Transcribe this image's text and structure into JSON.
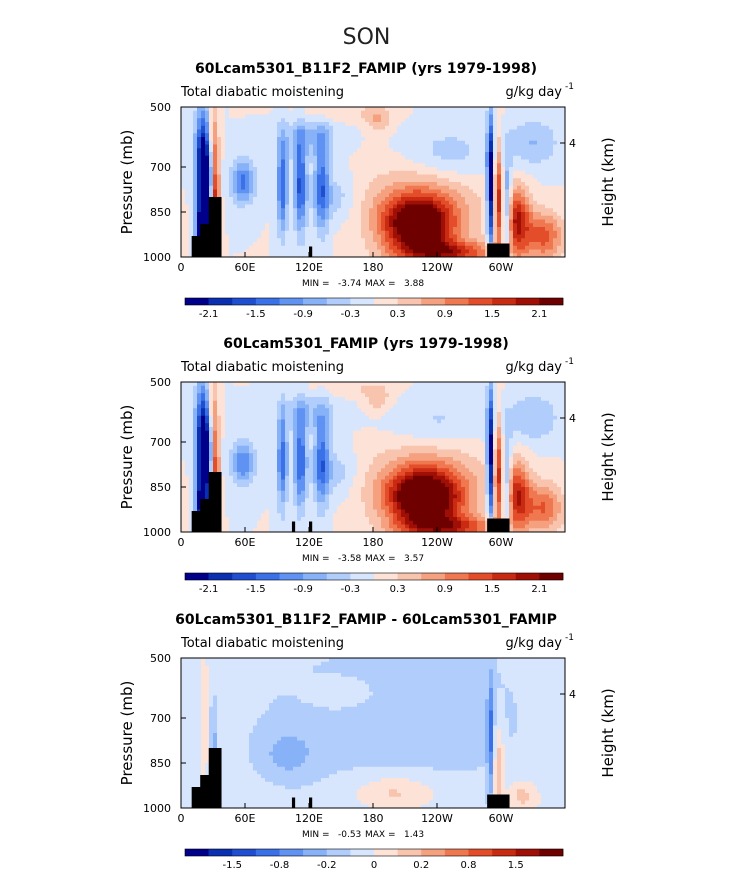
{
  "figure_title": "SON",
  "chart_data": [
    {
      "type": "heatmap",
      "title": "60Lcam5301_B11F2_FAMIP (yrs 1979-1998)",
      "subtitle_left": "Total diabatic moistening",
      "units": "g/kg day",
      "units_exp": "-1",
      "ylabel": "Pressure (mb)",
      "ylabel_right": "Height (km)",
      "yticks": [
        "500",
        "700",
        "850",
        "1000"
      ],
      "yticks_right": [
        "4"
      ],
      "xticks": [
        "0",
        "60E",
        "120E",
        "180",
        "120W",
        "60W"
      ],
      "stats": {
        "min_label": "MIN =",
        "min": "-3.74",
        "max_label": "MAX =",
        "max": "3.88"
      },
      "colorbar": {
        "labels": [
          "-2.1",
          "-1.5",
          "-0.9",
          "-0.3",
          "0.3",
          "0.9",
          "1.5",
          "2.1"
        ],
        "colors": [
          "#00008b",
          "#0a2fb0",
          "#1f4fd0",
          "#3a70e8",
          "#5f92f2",
          "#87b2f8",
          "#b0cdfb",
          "#d8e6fd",
          "#fde2d8",
          "#f9c4ad",
          "#f5a07e",
          "#ef7850",
          "#e44d2a",
          "#c92a12",
          "#a00f05",
          "#6e0000"
        ]
      },
      "field_range": [
        -2.4,
        2.4
      ],
      "features": [
        {
          "x": 22,
          "p": 700,
          "dx": 8,
          "dp": 180,
          "amp": -3.0
        },
        {
          "x": 20,
          "p": 920,
          "dx": 6,
          "dp": 100,
          "amp": -2.4
        },
        {
          "x": 32,
          "p": 850,
          "dx": 4,
          "dp": 240,
          "amp": 2.2
        },
        {
          "x": 28,
          "p": 600,
          "dx": 5,
          "dp": 120,
          "amp": 1.0
        },
        {
          "x": 58,
          "p": 750,
          "dx": 11,
          "dp": 70,
          "amp": -1.3
        },
        {
          "x": 95,
          "p": 760,
          "dx": 5,
          "dp": 160,
          "amp": -1.5
        },
        {
          "x": 112,
          "p": 760,
          "dx": 6,
          "dp": 160,
          "amp": -1.6
        },
        {
          "x": 132,
          "p": 760,
          "dx": 7,
          "dp": 160,
          "amp": -1.3
        },
        {
          "x": 120,
          "p": 600,
          "dx": 28,
          "dp": 60,
          "amp": -0.6
        },
        {
          "x": 145,
          "p": 800,
          "dx": 20,
          "dp": 80,
          "amp": -0.5
        },
        {
          "x": 185,
          "p": 540,
          "dx": 12,
          "dp": 40,
          "amp": 0.6
        },
        {
          "x": 150,
          "p": 520,
          "dx": 40,
          "dp": 30,
          "amp": 0.3
        },
        {
          "x": 222,
          "p": 895,
          "dx": 32,
          "dp": 90,
          "amp": 2.6
        },
        {
          "x": 225,
          "p": 820,
          "dx": 55,
          "dp": 130,
          "amp": 0.8
        },
        {
          "x": 250,
          "p": 660,
          "dx": 40,
          "dp": 90,
          "amp": -0.5
        },
        {
          "x": 290,
          "p": 760,
          "dx": 3,
          "dp": 230,
          "amp": -2.6
        },
        {
          "x": 298,
          "p": 790,
          "dx": 4,
          "dp": 180,
          "amp": 1.5
        },
        {
          "x": 305,
          "p": 850,
          "dx": 5,
          "dp": 160,
          "amp": -1.4
        },
        {
          "x": 315,
          "p": 880,
          "dx": 12,
          "dp": 110,
          "amp": 1.8
        },
        {
          "x": 340,
          "p": 930,
          "dx": 18,
          "dp": 80,
          "amp": 1.3
        },
        {
          "x": 330,
          "p": 620,
          "dx": 25,
          "dp": 80,
          "amp": -0.6
        },
        {
          "x": 250,
          "p": 985,
          "dx": 45,
          "dp": 40,
          "amp": 1.6
        }
      ],
      "terrain": [
        [
          10,
          20,
          930
        ],
        [
          18,
          28,
          890
        ],
        [
          26,
          38,
          800
        ],
        [
          287,
          308,
          955
        ],
        [
          120,
          123,
          965
        ]
      ]
    },
    {
      "type": "heatmap",
      "title": "60Lcam5301_FAMIP (yrs 1979-1998)",
      "subtitle_left": "Total diabatic moistening",
      "units": "g/kg day",
      "units_exp": "-1",
      "ylabel": "Pressure (mb)",
      "ylabel_right": "Height (km)",
      "yticks": [
        "500",
        "700",
        "850",
        "1000"
      ],
      "yticks_right": [
        "4"
      ],
      "xticks": [
        "0",
        "60E",
        "120E",
        "180",
        "120W",
        "60W"
      ],
      "stats": {
        "min_label": "MIN =",
        "min": "-3.58",
        "max_label": "MAX =",
        "max": "3.57"
      },
      "colorbar": {
        "labels": [
          "-2.1",
          "-1.5",
          "-0.9",
          "-0.3",
          "0.3",
          "0.9",
          "1.5",
          "2.1"
        ],
        "colors": [
          "#00008b",
          "#0a2fb0",
          "#1f4fd0",
          "#3a70e8",
          "#5f92f2",
          "#87b2f8",
          "#b0cdfb",
          "#d8e6fd",
          "#fde2d8",
          "#f9c4ad",
          "#f5a07e",
          "#ef7850",
          "#e44d2a",
          "#c92a12",
          "#a00f05",
          "#6e0000"
        ]
      },
      "field_range": [
        -2.4,
        2.4
      ],
      "features": [
        {
          "x": 22,
          "p": 700,
          "dx": 8,
          "dp": 180,
          "amp": -2.9
        },
        {
          "x": 20,
          "p": 920,
          "dx": 6,
          "dp": 100,
          "amp": -2.3
        },
        {
          "x": 32,
          "p": 850,
          "dx": 4,
          "dp": 240,
          "amp": 2.0
        },
        {
          "x": 28,
          "p": 600,
          "dx": 5,
          "dp": 120,
          "amp": 1.0
        },
        {
          "x": 58,
          "p": 770,
          "dx": 11,
          "dp": 70,
          "amp": -1.2
        },
        {
          "x": 95,
          "p": 760,
          "dx": 5,
          "dp": 160,
          "amp": -1.4
        },
        {
          "x": 112,
          "p": 760,
          "dx": 6,
          "dp": 160,
          "amp": -1.5
        },
        {
          "x": 132,
          "p": 760,
          "dx": 7,
          "dp": 160,
          "amp": -1.3
        },
        {
          "x": 120,
          "p": 600,
          "dx": 28,
          "dp": 60,
          "amp": -0.5
        },
        {
          "x": 145,
          "p": 800,
          "dx": 20,
          "dp": 80,
          "amp": -0.5
        },
        {
          "x": 185,
          "p": 560,
          "dx": 12,
          "dp": 40,
          "amp": 0.5
        },
        {
          "x": 160,
          "p": 520,
          "dx": 40,
          "dp": 30,
          "amp": 0.3
        },
        {
          "x": 228,
          "p": 890,
          "dx": 34,
          "dp": 90,
          "amp": 2.7
        },
        {
          "x": 230,
          "p": 820,
          "dx": 55,
          "dp": 130,
          "amp": 0.8
        },
        {
          "x": 240,
          "p": 640,
          "dx": 45,
          "dp": 90,
          "amp": -0.4
        },
        {
          "x": 290,
          "p": 760,
          "dx": 3,
          "dp": 230,
          "amp": -2.5
        },
        {
          "x": 298,
          "p": 790,
          "dx": 4,
          "dp": 180,
          "amp": 1.4
        },
        {
          "x": 305,
          "p": 850,
          "dx": 5,
          "dp": 160,
          "amp": -1.3
        },
        {
          "x": 315,
          "p": 880,
          "dx": 12,
          "dp": 110,
          "amp": 1.7
        },
        {
          "x": 340,
          "p": 920,
          "dx": 18,
          "dp": 80,
          "amp": 1.2
        },
        {
          "x": 330,
          "p": 620,
          "dx": 25,
          "dp": 80,
          "amp": -0.6
        },
        {
          "x": 250,
          "p": 985,
          "dx": 45,
          "dp": 40,
          "amp": 1.5
        }
      ],
      "terrain": [
        [
          10,
          20,
          930
        ],
        [
          18,
          28,
          890
        ],
        [
          26,
          38,
          800
        ],
        [
          287,
          308,
          955
        ],
        [
          104,
          107,
          965
        ],
        [
          120,
          123,
          965
        ]
      ]
    },
    {
      "type": "heatmap",
      "title": "60Lcam5301_B11F2_FAMIP - 60Lcam5301_FAMIP",
      "subtitle_left": "Total diabatic moistening",
      "units": "g/kg day",
      "units_exp": "-1",
      "ylabel": "Pressure (mb)",
      "ylabel_right": "Height (km)",
      "yticks": [
        "500",
        "700",
        "850",
        "1000"
      ],
      "yticks_right": [
        "4"
      ],
      "xticks": [
        "0",
        "60E",
        "120E",
        "180",
        "120W",
        "60W"
      ],
      "stats": {
        "min_label": "MIN =",
        "min": "-0.53",
        "max_label": "MAX =",
        "max": "1.43"
      },
      "colorbar": {
        "labels": [
          "-1.5",
          "-0.8",
          "-0.2",
          "0",
          "0.2",
          "0.8",
          "1.5"
        ],
        "colors": [
          "#00008b",
          "#0a2fb0",
          "#1f4fd0",
          "#3a70e8",
          "#5f92f2",
          "#87b2f8",
          "#b0cdfb",
          "#d8e6fd",
          "#fde2d8",
          "#f9c4ad",
          "#f5a07e",
          "#ef7850",
          "#e44d2a",
          "#c92a12",
          "#a00f05",
          "#6e0000"
        ]
      },
      "field_range": [
        -2.0,
        2.0
      ],
      "features": [
        {
          "x": 200,
          "p": 700,
          "dx": 200,
          "dp": 400,
          "amp": -0.35
        },
        {
          "x": 22,
          "p": 700,
          "dx": 5,
          "dp": 200,
          "amp": 0.35
        },
        {
          "x": 30,
          "p": 820,
          "dx": 3,
          "dp": 160,
          "amp": -0.6
        },
        {
          "x": 100,
          "p": 820,
          "dx": 25,
          "dp": 80,
          "amp": -0.4
        },
        {
          "x": 150,
          "p": 620,
          "dx": 30,
          "dp": 50,
          "amp": 0.2
        },
        {
          "x": 200,
          "p": 950,
          "dx": 40,
          "dp": 60,
          "amp": 0.5
        },
        {
          "x": 290,
          "p": 760,
          "dx": 3,
          "dp": 200,
          "amp": -0.9
        },
        {
          "x": 298,
          "p": 860,
          "dx": 5,
          "dp": 140,
          "amp": 0.6
        },
        {
          "x": 320,
          "p": 960,
          "dx": 15,
          "dp": 50,
          "amp": 0.5
        },
        {
          "x": 250,
          "p": 560,
          "dx": 30,
          "dp": 60,
          "amp": -0.2
        }
      ],
      "terrain": [
        [
          10,
          20,
          930
        ],
        [
          18,
          28,
          890
        ],
        [
          26,
          38,
          800
        ],
        [
          287,
          308,
          955
        ],
        [
          104,
          107,
          965
        ],
        [
          120,
          123,
          965
        ]
      ]
    }
  ]
}
